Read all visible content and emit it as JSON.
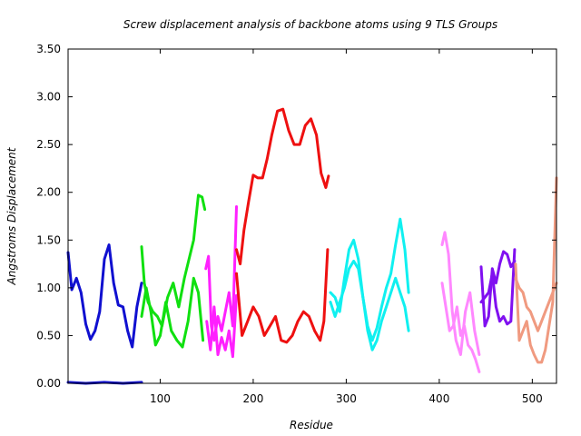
{
  "chart_data": {
    "type": "line",
    "title": "Screw displacement analysis of backbone atoms using 9 TLS Groups",
    "xlabel": "Residue",
    "ylabel": "Angstroms Displacement",
    "xlim": [
      1,
      526
    ],
    "ylim": [
      0,
      3.5
    ],
    "xticks": [
      100,
      200,
      300,
      400,
      500
    ],
    "yticks": [
      0.0,
      0.5,
      1.0,
      1.5,
      2.0,
      2.5,
      3.0,
      3.5
    ],
    "xtick_labels": [
      "100",
      "200",
      "300",
      "400",
      "500"
    ],
    "ytick_labels": [
      "0.00",
      "0.50",
      "1.00",
      "1.50",
      "2.00",
      "2.50",
      "3.00",
      "3.50"
    ],
    "grid": false,
    "legend": "none",
    "series": [
      {
        "color": "#1010d0",
        "lines": [
          {
            "x": [
              1,
              5,
              10,
              15,
              20,
              25,
              30,
              35,
              40,
              45,
              50,
              55,
              60,
              65,
              70,
              75,
              80
            ],
            "y": [
              1.37,
              0.98,
              1.1,
              0.95,
              0.62,
              0.46,
              0.55,
              0.75,
              1.3,
              1.45,
              1.05,
              0.82,
              0.8,
              0.55,
              0.38,
              0.8,
              1.05
            ]
          },
          {
            "x": [
              1,
              20,
              40,
              60,
              80
            ],
            "y": [
              0.01,
              0.0,
              0.01,
              0.0,
              0.01
            ]
          }
        ]
      },
      {
        "color": "#10e010",
        "lines": [
          {
            "x": [
              80,
              83,
              87,
              92,
              97,
              102,
              108,
              114,
              120,
              126,
              131,
              136,
              141,
              145,
              148
            ],
            "y": [
              1.43,
              1.05,
              0.85,
              0.75,
              0.7,
              0.6,
              0.9,
              1.05,
              0.8,
              1.1,
              1.3,
              1.5,
              1.97,
              1.95,
              1.82
            ]
          },
          {
            "x": [
              80,
              85,
              90,
              95,
              100,
              106,
              112,
              118,
              124,
              130,
              136,
              141,
              146
            ],
            "y": [
              0.7,
              1.0,
              0.75,
              0.4,
              0.5,
              0.85,
              0.55,
              0.45,
              0.38,
              0.65,
              1.1,
              0.95,
              0.45
            ]
          }
        ]
      },
      {
        "color": "#ff20ff",
        "lines": [
          {
            "x": [
              149,
              152,
              155,
              158,
              162,
              166,
              170,
              174,
              178,
              182
            ],
            "y": [
              1.2,
              1.33,
              0.6,
              0.45,
              0.7,
              0.55,
              0.75,
              0.95,
              0.6,
              1.85
            ]
          },
          {
            "x": [
              150,
              154,
              158,
              162,
              166,
              170,
              174,
              178,
              182
            ],
            "y": [
              0.65,
              0.35,
              0.8,
              0.3,
              0.48,
              0.35,
              0.55,
              0.28,
              0.92
            ]
          }
        ]
      },
      {
        "color": "#ee1010",
        "lines": [
          {
            "x": [
              182,
              186,
              190,
              195,
              200,
              205,
              210,
              215,
              220,
              226,
              232,
              238,
              244,
              250,
              256,
              262,
              268,
              273,
              278,
              281
            ],
            "y": [
              1.4,
              1.25,
              1.6,
              1.9,
              2.18,
              2.15,
              2.15,
              2.35,
              2.6,
              2.85,
              2.87,
              2.65,
              2.5,
              2.5,
              2.7,
              2.77,
              2.6,
              2.2,
              2.05,
              2.17
            ]
          },
          {
            "x": [
              182,
              188,
              194,
              200,
              206,
              212,
              218,
              224,
              230,
              236,
              242,
              248,
              254,
              260,
              266,
              272,
              276,
              280
            ],
            "y": [
              1.15,
              0.5,
              0.65,
              0.8,
              0.7,
              0.5,
              0.6,
              0.7,
              0.45,
              0.43,
              0.5,
              0.65,
              0.75,
              0.7,
              0.55,
              0.45,
              0.65,
              1.4
            ]
          }
        ]
      },
      {
        "color": "#10f0f0",
        "lines": [
          {
            "x": [
              283,
              288,
              293,
              298,
              303,
              308,
              313,
              318,
              323,
              328,
              333,
              338,
              343,
              348,
              353,
              358,
              363,
              367
            ],
            "y": [
              0.95,
              0.9,
              0.75,
              1.1,
              1.4,
              1.5,
              1.3,
              0.9,
              0.6,
              0.45,
              0.58,
              0.8,
              1.0,
              1.15,
              1.45,
              1.72,
              1.4,
              0.95
            ]
          },
          {
            "x": [
              283,
              288,
              293,
              298,
              303,
              308,
              313,
              318,
              323,
              328,
              333,
              338,
              343,
              348,
              353,
              358,
              363,
              367
            ],
            "y": [
              0.85,
              0.7,
              0.85,
              1.0,
              1.2,
              1.28,
              1.2,
              0.9,
              0.55,
              0.35,
              0.45,
              0.65,
              0.8,
              0.95,
              1.1,
              0.95,
              0.8,
              0.55
            ]
          }
        ]
      },
      {
        "color": "#ff88ff",
        "lines": [
          {
            "x": [
              403,
              406,
              410,
              414,
              418,
              423,
              428,
              433,
              438,
              443
            ],
            "y": [
              1.45,
              1.58,
              1.35,
              0.75,
              0.45,
              0.3,
              0.75,
              0.95,
              0.55,
              0.3
            ]
          },
          {
            "x": [
              403,
              407,
              411,
              415,
              419,
              423,
              427,
              431,
              435,
              439,
              443
            ],
            "y": [
              1.05,
              0.8,
              0.55,
              0.6,
              0.8,
              0.5,
              0.6,
              0.4,
              0.35,
              0.25,
              0.12
            ]
          }
        ]
      },
      {
        "color": "#8010f0",
        "lines": [
          {
            "x": [
              445,
              449,
              453,
              457,
              461,
              465,
              469,
              473,
              477,
              481
            ],
            "y": [
              1.22,
              0.6,
              0.7,
              1.2,
              1.05,
              1.25,
              1.38,
              1.35,
              1.22,
              1.28
            ]
          },
          {
            "x": [
              445,
              449,
              453,
              457,
              461,
              465,
              469,
              473,
              477,
              481
            ],
            "y": [
              0.85,
              0.9,
              0.95,
              1.15,
              0.8,
              0.65,
              0.7,
              0.62,
              0.65,
              1.4
            ]
          }
        ]
      },
      {
        "color": "#f09a80",
        "lines": [
          {
            "x": [
              482,
              486,
              490,
              494,
              498,
              502,
              506,
              510,
              514,
              518,
              522,
              526
            ],
            "y": [
              1.25,
              0.45,
              0.55,
              0.65,
              0.4,
              0.3,
              0.22,
              0.22,
              0.35,
              0.6,
              0.85,
              2.15
            ]
          },
          {
            "x": [
              482,
              486,
              490,
              494,
              498,
              502,
              506,
              510,
              514,
              518,
              522,
              526
            ],
            "y": [
              1.1,
              1.0,
              0.95,
              0.8,
              0.75,
              0.65,
              0.55,
              0.65,
              0.75,
              0.85,
              0.95,
              1.05
            ]
          }
        ]
      }
    ]
  }
}
